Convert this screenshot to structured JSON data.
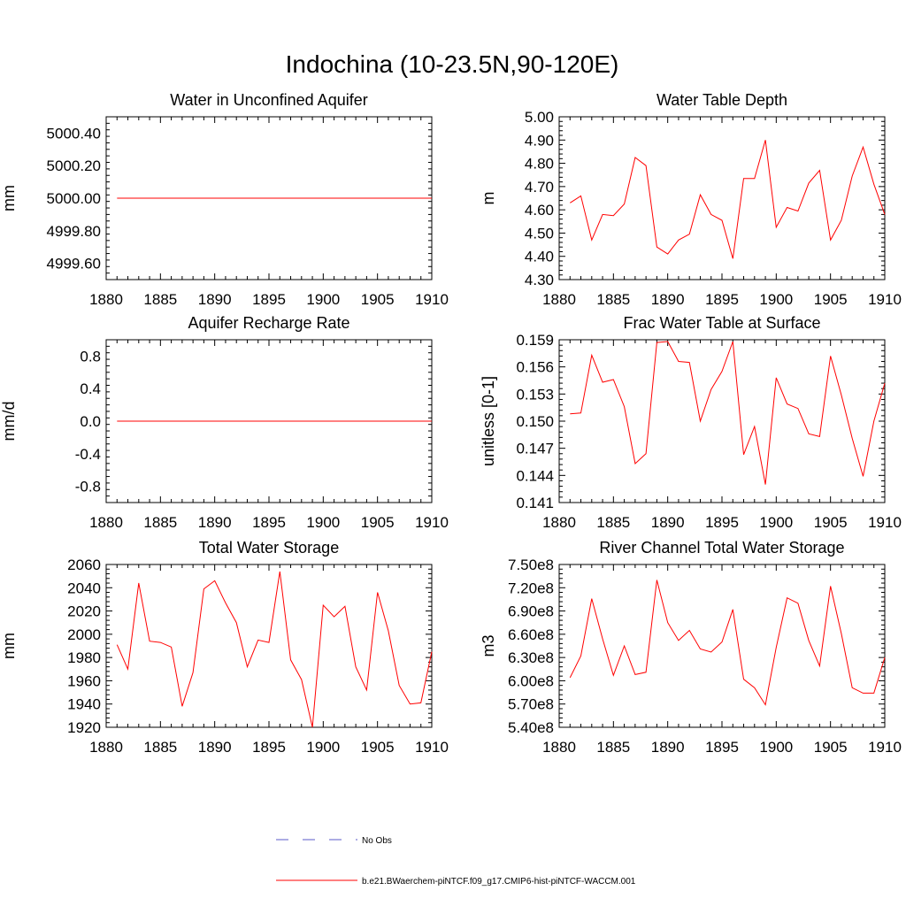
{
  "figure": {
    "title": "Indochina (10-23.5N,90-120E)"
  },
  "legend": {
    "entries": [
      {
        "label": "No Obs",
        "color": "#5a5ac8",
        "dash": "dashed"
      },
      {
        "label": "b.e21.BWaerchem-piNTCF.f09_g17.CMIP6-hist-piNTCF-WACCM.001",
        "color": "#ff0000",
        "dash": "solid"
      }
    ]
  },
  "colors": {
    "series": "#ff0000",
    "axis": "#000000"
  },
  "chart_data": [
    {
      "type": "line",
      "title": "Water in Unconfined Aquifer",
      "ylabel": "mm",
      "xlabel": "",
      "xlim": [
        1880,
        1910
      ],
      "ylim": [
        4999.5,
        5000.5
      ],
      "xticks": [
        1880,
        1885,
        1890,
        1895,
        1900,
        1905,
        1910
      ],
      "xtick_labels": [
        "1880",
        "1885",
        "1890",
        "1895",
        "1900",
        "1905",
        "1910"
      ],
      "yticks": [
        4999.6,
        4999.8,
        5000.0,
        5000.2,
        5000.4
      ],
      "ytick_labels": [
        "4999.60",
        "4999.80",
        "5000.00",
        "5000.20",
        "5000.40"
      ],
      "series": [
        {
          "x": [
            1881,
            1910
          ],
          "y": [
            5000.0,
            5000.0
          ]
        }
      ]
    },
    {
      "type": "line",
      "title": "Water Table Depth",
      "ylabel": "m",
      "xlabel": "",
      "xlim": [
        1880,
        1910
      ],
      "ylim": [
        4.3,
        5.0
      ],
      "xticks": [
        1880,
        1885,
        1890,
        1895,
        1900,
        1905,
        1910
      ],
      "xtick_labels": [
        "1880",
        "1885",
        "1890",
        "1895",
        "1900",
        "1905",
        "1910"
      ],
      "yticks": [
        4.3,
        4.4,
        4.5,
        4.6,
        4.7,
        4.8,
        4.9,
        5.0
      ],
      "ytick_labels": [
        "4.30",
        "4.40",
        "4.50",
        "4.60",
        "4.70",
        "4.80",
        "4.90",
        "5.00"
      ],
      "series": [
        {
          "x": [
            1881,
            1882,
            1883,
            1884,
            1885,
            1886,
            1887,
            1888,
            1889,
            1890,
            1891,
            1892,
            1893,
            1894,
            1895,
            1896,
            1897,
            1898,
            1899,
            1900,
            1901,
            1902,
            1903,
            1904,
            1905,
            1906,
            1907,
            1908,
            1909,
            1910
          ],
          "y": [
            4.63,
            4.66,
            4.47,
            4.58,
            4.575,
            4.625,
            4.825,
            4.79,
            4.44,
            4.41,
            4.47,
            4.495,
            4.665,
            4.58,
            4.555,
            4.39,
            4.735,
            4.735,
            4.9,
            4.525,
            4.61,
            4.595,
            4.715,
            4.77,
            4.47,
            4.555,
            4.745,
            4.87,
            4.71,
            4.58
          ]
        }
      ]
    },
    {
      "type": "line",
      "title": "Aquifer Recharge Rate",
      "ylabel": "mm/d",
      "xlabel": "",
      "xlim": [
        1880,
        1910
      ],
      "ylim": [
        -1.0,
        1.0
      ],
      "xticks": [
        1880,
        1885,
        1890,
        1895,
        1900,
        1905,
        1910
      ],
      "xtick_labels": [
        "1880",
        "1885",
        "1890",
        "1895",
        "1900",
        "1905",
        "1910"
      ],
      "yticks": [
        -0.8,
        -0.4,
        0.0,
        0.4,
        0.8
      ],
      "ytick_labels": [
        "-0.8",
        "-0.4",
        "0.0",
        "0.4",
        "0.8"
      ],
      "series": [
        {
          "x": [
            1881,
            1910
          ],
          "y": [
            0.0,
            0.0
          ]
        }
      ]
    },
    {
      "type": "line",
      "title": "Frac Water Table at Surface",
      "ylabel": "unitless [0-1]",
      "xlabel": "",
      "xlim": [
        1880,
        1910
      ],
      "ylim": [
        0.141,
        0.159
      ],
      "xticks": [
        1880,
        1885,
        1890,
        1895,
        1900,
        1905,
        1910
      ],
      "xtick_labels": [
        "1880",
        "1885",
        "1890",
        "1895",
        "1900",
        "1905",
        "1910"
      ],
      "yticks": [
        0.141,
        0.144,
        0.147,
        0.15,
        0.153,
        0.156,
        0.159
      ],
      "ytick_labels": [
        "0.141",
        "0.144",
        "0.147",
        "0.150",
        "0.153",
        "0.156",
        "0.159"
      ],
      "series": [
        {
          "x": [
            1881,
            1882,
            1883,
            1884,
            1885,
            1886,
            1887,
            1888,
            1889,
            1890,
            1891,
            1892,
            1893,
            1894,
            1895,
            1896,
            1897,
            1898,
            1899,
            1900,
            1901,
            1902,
            1903,
            1904,
            1905,
            1906,
            1907,
            1908,
            1909,
            1910
          ],
          "y": [
            0.1508,
            0.1509,
            0.1573,
            0.1543,
            0.1546,
            0.1516,
            0.1453,
            0.1464,
            0.1587,
            0.1588,
            0.1566,
            0.1565,
            0.15,
            0.1535,
            0.1555,
            0.1588,
            0.1463,
            0.1494,
            0.143,
            0.1548,
            0.1519,
            0.1514,
            0.1486,
            0.1483,
            0.1572,
            0.1529,
            0.1481,
            0.1439,
            0.15,
            0.1542
          ]
        }
      ]
    },
    {
      "type": "line",
      "title": "Total Water Storage",
      "ylabel": "mm",
      "xlabel": "",
      "xlim": [
        1880,
        1910
      ],
      "ylim": [
        1920,
        2060
      ],
      "xticks": [
        1880,
        1885,
        1890,
        1895,
        1900,
        1905,
        1910
      ],
      "xtick_labels": [
        "1880",
        "1885",
        "1890",
        "1895",
        "1900",
        "1905",
        "1910"
      ],
      "yticks": [
        1920,
        1940,
        1960,
        1980,
        2000,
        2020,
        2040,
        2060
      ],
      "ytick_labels": [
        "1920",
        "1940",
        "1960",
        "1980",
        "2000",
        "2020",
        "2040",
        "2060"
      ],
      "series": [
        {
          "x": [
            1881,
            1882,
            1883,
            1884,
            1885,
            1886,
            1887,
            1888,
            1889,
            1890,
            1891,
            1892,
            1893,
            1894,
            1895,
            1896,
            1897,
            1898,
            1899,
            1900,
            1901,
            1902,
            1903,
            1904,
            1905,
            1906,
            1907,
            1908,
            1909,
            1910
          ],
          "y": [
            1991,
            1970,
            2044,
            1994,
            1993,
            1989,
            1938,
            1967,
            2039,
            2046,
            2027,
            2010,
            1972,
            1995,
            1993,
            2054,
            1978,
            1961,
            1920,
            2025,
            2015,
            2024,
            1972,
            1952,
            2036,
            2003,
            1956,
            1940,
            1941,
            1985
          ]
        }
      ]
    },
    {
      "type": "line",
      "title": "River Channel Total Water Storage",
      "ylabel": "m3",
      "xlabel": "",
      "xlim": [
        1880,
        1910
      ],
      "ylim": [
        540000000,
        750000000
      ],
      "xticks": [
        1880,
        1885,
        1890,
        1895,
        1900,
        1905,
        1910
      ],
      "xtick_labels": [
        "1880",
        "1885",
        "1890",
        "1895",
        "1900",
        "1905",
        "1910"
      ],
      "yticks": [
        540000000,
        570000000,
        600000000,
        630000000,
        660000000,
        690000000,
        720000000,
        750000000
      ],
      "ytick_labels": [
        "5.40e8",
        "5.70e8",
        "6.00e8",
        "6.30e8",
        "6.60e8",
        "6.90e8",
        "7.20e8",
        "7.50e8"
      ],
      "series": [
        {
          "x": [
            1881,
            1882,
            1883,
            1884,
            1885,
            1886,
            1887,
            1888,
            1889,
            1890,
            1891,
            1892,
            1893,
            1894,
            1895,
            1896,
            1897,
            1898,
            1899,
            1900,
            1901,
            1902,
            1903,
            1904,
            1905,
            1906,
            1907,
            1908,
            1909,
            1910
          ],
          "y": [
            604000000,
            632000000,
            706000000,
            654000000,
            607000000,
            645000000,
            608000000,
            611000000,
            730000000,
            675000000,
            652000000,
            665000000,
            641000000,
            637000000,
            650000000,
            692000000,
            602000000,
            591000000,
            569000000,
            643000000,
            707000000,
            700000000,
            652000000,
            619000000,
            722000000,
            661000000,
            591000000,
            584000000,
            584000000,
            630000000
          ]
        }
      ]
    }
  ]
}
